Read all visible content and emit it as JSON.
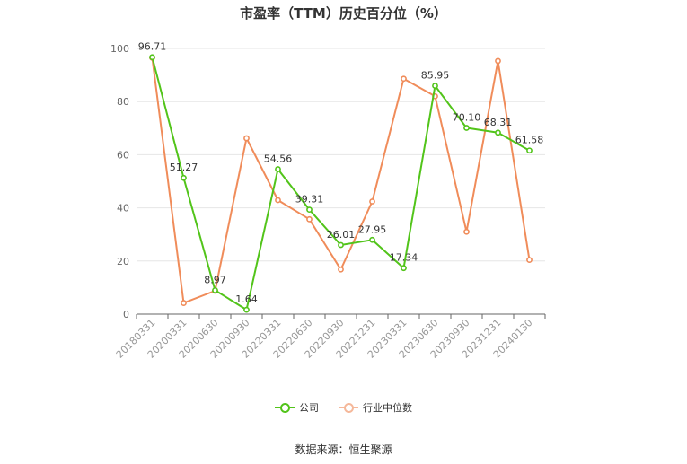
{
  "chart_data": {
    "type": "line",
    "title": "市盈率（TTM）历史百分位（%）",
    "categories": [
      "20180331",
      "20200331",
      "20200630",
      "20200930",
      "20220331",
      "20220630",
      "20220930",
      "20221231",
      "20230331",
      "20230630",
      "20230930",
      "20231231",
      "20240130"
    ],
    "ylim": [
      0,
      100
    ],
    "yticks": [
      0,
      20,
      40,
      60,
      80,
      100
    ],
    "grid": true,
    "legend_position": "bottom",
    "series": [
      {
        "name": "公司",
        "color": "#52c41a",
        "show_labels": true,
        "values": [
          96.71,
          51.27,
          8.97,
          1.64,
          54.56,
          39.31,
          26.01,
          27.95,
          17.34,
          85.95,
          70.1,
          68.31,
          61.58
        ],
        "labels": [
          "96.71",
          "51.27",
          "8.97",
          "1.64",
          "54.56",
          "39.31",
          "26.01",
          "27.95",
          "17.34",
          "85.95",
          "70.10",
          "68.31",
          "61.58"
        ]
      },
      {
        "name": "行业中位数",
        "color": "#f08c5a",
        "show_labels": false,
        "values": [
          96.5,
          4.2,
          8.8,
          66.2,
          42.9,
          35.7,
          16.8,
          42.4,
          88.6,
          82.0,
          31.0,
          95.3,
          20.4
        ]
      }
    ]
  },
  "legend": {
    "company": "公司",
    "industry": "行业中位数"
  },
  "source": "数据来源：恒生聚源"
}
